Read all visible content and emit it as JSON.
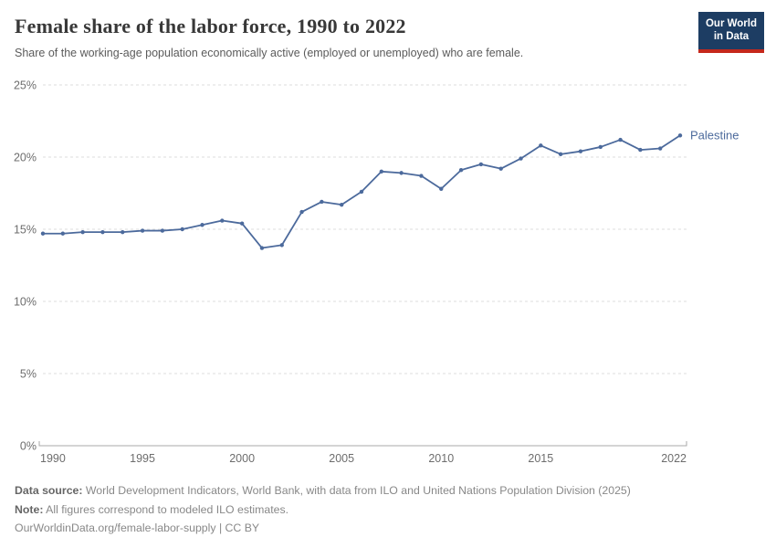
{
  "header": {
    "title": "Female share of the labor force, 1990 to 2022",
    "subtitle": "Share of the working-age population economically active (employed or unemployed) who are female.",
    "logo": {
      "line1": "Our World",
      "line2": "in Data",
      "bg_color": "#1d3d63",
      "stripe_color": "#c5281c"
    }
  },
  "chart_data": {
    "type": "line",
    "title": "Female share of the labor force, 1990 to 2022",
    "xlabel": "",
    "ylabel": "",
    "xlim": [
      1990,
      2022
    ],
    "ylim": [
      0,
      25
    ],
    "grid": "horizontal-dashed",
    "legend_position": "end-of-line-label",
    "x_ticks": [
      1990,
      1995,
      2000,
      2005,
      2010,
      2015,
      2022
    ],
    "y_ticks": [
      0,
      5,
      10,
      15,
      20,
      25
    ],
    "y_tick_suffix": "%",
    "series": [
      {
        "name": "Palestine",
        "color": "#4C6A9C",
        "x": [
          1990,
          1991,
          1992,
          1993,
          1994,
          1995,
          1996,
          1997,
          1998,
          1999,
          2000,
          2001,
          2002,
          2003,
          2004,
          2005,
          2006,
          2007,
          2008,
          2009,
          2010,
          2011,
          2012,
          2013,
          2014,
          2015,
          2016,
          2017,
          2018,
          2019,
          2020,
          2021,
          2022
        ],
        "values": [
          14.7,
          14.7,
          14.8,
          14.8,
          14.8,
          14.9,
          14.9,
          15.0,
          15.3,
          15.6,
          15.4,
          13.7,
          13.9,
          16.2,
          16.9,
          16.7,
          17.6,
          19.0,
          18.9,
          18.7,
          17.8,
          19.1,
          19.5,
          19.2,
          19.9,
          20.8,
          20.2,
          20.4,
          20.7,
          21.2,
          20.5,
          20.6,
          21.5
        ]
      }
    ]
  },
  "footer": {
    "datasource_label": "Data source:",
    "datasource_text": " World Development Indicators, World Bank, with data from ILO and United Nations Population Division (2025)",
    "note_label": "Note:",
    "note_text": " All figures correspond to modeled ILO estimates.",
    "link_text": "OurWorldinData.org/female-labor-supply | CC BY"
  }
}
